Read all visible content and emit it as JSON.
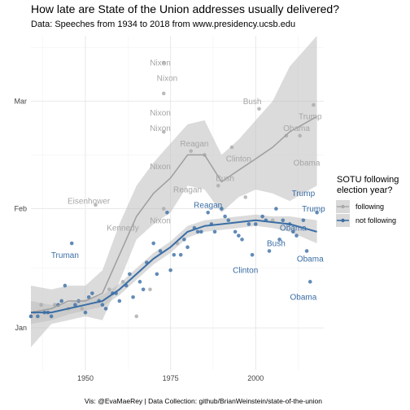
{
  "chart_data": {
    "type": "scatter",
    "title": "How late are State of the Union addresses usually delivered?",
    "subtitle": "Data: Speeches from 1934 to 2018 from www.presidency.ucsb.edu",
    "caption": "Vis: @EvaMaeRey | Data Collection: github/BrianWeinstein/state-of-the-union",
    "xlabel": "",
    "ylabel": "",
    "xlim": [
      1934,
      2020
    ],
    "x_ticks": [
      1950,
      1975,
      2000
    ],
    "y_unit": "day of year",
    "ylim": [
      -10,
      77
    ],
    "y_ticks": [
      {
        "value": 1,
        "label": "Jan"
      },
      {
        "value": 32,
        "label": "Feb"
      },
      {
        "value": 60,
        "label": "Mar"
      }
    ],
    "legend": {
      "title": "SOTU following\nelection year?",
      "position": "right",
      "entries": [
        {
          "label": "following",
          "color": "#aaaaaa"
        },
        {
          "label": "not following",
          "color": "#3a6ea5"
        }
      ]
    },
    "series": [
      {
        "name": "following",
        "color": "#aaaaaa",
        "points": [
          [
            1934,
            4
          ],
          [
            1935,
            5
          ],
          [
            1937,
            7
          ],
          [
            1941,
            7
          ],
          [
            1945,
            6
          ],
          [
            1949,
            6
          ],
          [
            1953,
            33
          ],
          [
            1957,
            11
          ],
          [
            1961,
            13
          ],
          [
            1965,
            4
          ],
          [
            1969,
            11
          ],
          [
            1973,
            70
          ],
          [
            1973,
            62
          ],
          [
            1973,
            32
          ],
          [
            1973,
            52
          ],
          [
            1977,
            23
          ],
          [
            1981,
            47
          ],
          [
            1985,
            46
          ],
          [
            1989,
            38
          ],
          [
            1993,
            48
          ],
          [
            1997,
            35
          ],
          [
            2001,
            58
          ],
          [
            2005,
            29
          ],
          [
            2009,
            51
          ],
          [
            2013,
            51
          ],
          [
            2017,
            59
          ]
        ]
      },
      {
        "name": "not following",
        "color": "#3a6ea5",
        "points": [
          [
            1934,
            4
          ],
          [
            1936,
            4
          ],
          [
            1938,
            5
          ],
          [
            1939,
            5
          ],
          [
            1940,
            4
          ],
          [
            1942,
            7
          ],
          [
            1943,
            8
          ],
          [
            1944,
            12
          ],
          [
            1946,
            23
          ],
          [
            1947,
            7
          ],
          [
            1948,
            8
          ],
          [
            1950,
            5
          ],
          [
            1951,
            9
          ],
          [
            1952,
            10
          ],
          [
            1954,
            8
          ],
          [
            1955,
            7
          ],
          [
            1956,
            6
          ],
          [
            1958,
            10
          ],
          [
            1959,
            10
          ],
          [
            1960,
            8
          ],
          [
            1962,
            12
          ],
          [
            1963,
            15
          ],
          [
            1964,
            9
          ],
          [
            1966,
            13
          ],
          [
            1967,
            11
          ],
          [
            1968,
            18
          ],
          [
            1970,
            23
          ],
          [
            1971,
            15
          ],
          [
            1972,
            21
          ],
          [
            1974,
            31
          ],
          [
            1975,
            16
          ],
          [
            1976,
            20
          ],
          [
            1978,
            20
          ],
          [
            1979,
            24
          ],
          [
            1980,
            22
          ],
          [
            1982,
            27
          ],
          [
            1983,
            26
          ],
          [
            1984,
            26
          ],
          [
            1986,
            31
          ],
          [
            1987,
            28
          ],
          [
            1988,
            26
          ],
          [
            1990,
            32
          ],
          [
            1991,
            30
          ],
          [
            1992,
            29
          ],
          [
            1994,
            26
          ],
          [
            1995,
            25
          ],
          [
            1996,
            24
          ],
          [
            1998,
            28
          ],
          [
            1999,
            20
          ],
          [
            2000,
            28
          ],
          [
            2002,
            30
          ],
          [
            2003,
            29
          ],
          [
            2004,
            21
          ],
          [
            2006,
            32
          ],
          [
            2007,
            24
          ],
          [
            2008,
            29
          ],
          [
            2010,
            28
          ],
          [
            2011,
            26
          ],
          [
            2012,
            25
          ],
          [
            2014,
            29
          ],
          [
            2015,
            21
          ],
          [
            2016,
            13
          ],
          [
            2018,
            31
          ]
        ]
      }
    ],
    "trend_following": {
      "x": [
        1934,
        1940,
        1945,
        1950,
        1955,
        1960,
        1965,
        1970,
        1975,
        1980,
        1985,
        1990,
        1995,
        2000,
        2005,
        2010,
        2018
      ],
      "y": [
        5,
        6,
        8,
        8,
        10,
        20,
        30,
        36,
        40,
        46,
        46,
        39,
        42,
        45,
        48,
        52,
        56
      ],
      "lower": [
        -4,
        2,
        3,
        4,
        3,
        13,
        24,
        28,
        31,
        38,
        37,
        31,
        35,
        37,
        36,
        34,
        38
      ],
      "upper": [
        12,
        11,
        12,
        12,
        16,
        28,
        38,
        44,
        49,
        54,
        55,
        46,
        50,
        55,
        60,
        69,
        77
      ]
    },
    "trend_not_following": {
      "x": [
        1934,
        1940,
        1945,
        1950,
        1955,
        1960,
        1965,
        1970,
        1975,
        1980,
        1985,
        1990,
        1995,
        2000,
        2005,
        2010,
        2018
      ],
      "y": [
        5,
        5,
        6,
        7,
        8,
        11,
        15,
        19,
        22,
        26,
        27.5,
        28,
        28.5,
        29,
        28.5,
        28,
        26
      ],
      "lower": [
        2,
        3,
        4.5,
        5.5,
        6.5,
        9.5,
        13.5,
        17.5,
        20.5,
        24.5,
        26,
        26.5,
        27,
        27.5,
        27,
        26,
        23
      ],
      "upper": [
        8,
        7,
        7.5,
        8.5,
        9.5,
        12.5,
        16.5,
        20.5,
        23.5,
        27.5,
        29,
        29.5,
        30,
        30.5,
        30,
        30,
        29
      ]
    },
    "annotations": [
      {
        "text": "Nixon",
        "x": 1972,
        "y": 70,
        "group": "following"
      },
      {
        "text": "Nixon",
        "x": 1974,
        "y": 66,
        "group": "following"
      },
      {
        "text": "Nixon",
        "x": 1972,
        "y": 57,
        "group": "following"
      },
      {
        "text": "Nixon",
        "x": 1972,
        "y": 53,
        "group": "following"
      },
      {
        "text": "Reagan",
        "x": 1982,
        "y": 49,
        "group": "following"
      },
      {
        "text": "Nixon",
        "x": 1972,
        "y": 43,
        "group": "following"
      },
      {
        "text": "Reagan",
        "x": 1980,
        "y": 37,
        "group": "following"
      },
      {
        "text": "Nixon",
        "x": 1972,
        "y": 29,
        "group": "following"
      },
      {
        "text": "Eisenhower",
        "x": 1951,
        "y": 34,
        "group": "following"
      },
      {
        "text": "Kennedy",
        "x": 1961,
        "y": 27,
        "group": "following"
      },
      {
        "text": "Bush",
        "x": 1999,
        "y": 60,
        "group": "following"
      },
      {
        "text": "Clinton",
        "x": 1995,
        "y": 45,
        "group": "following"
      },
      {
        "text": "Bush",
        "x": 1991,
        "y": 40,
        "group": "following"
      },
      {
        "text": "Trump",
        "x": 2016,
        "y": 56,
        "group": "following"
      },
      {
        "text": "Obama",
        "x": 2012,
        "y": 53,
        "group": "following"
      },
      {
        "text": "Obama",
        "x": 2015,
        "y": 44,
        "group": "following"
      },
      {
        "text": "Truman",
        "x": 1944,
        "y": 20,
        "group": "not following"
      },
      {
        "text": "Reagan",
        "x": 1986,
        "y": 33,
        "group": "not following"
      },
      {
        "text": "Clinton",
        "x": 1997,
        "y": 16,
        "group": "not following"
      },
      {
        "text": "Bush",
        "x": 2006,
        "y": 23,
        "group": "not following"
      },
      {
        "text": "Trump",
        "x": 2014,
        "y": 36,
        "group": "not following"
      },
      {
        "text": "Trump",
        "x": 2017,
        "y": 32,
        "group": "not following"
      },
      {
        "text": "Obama",
        "x": 2011,
        "y": 27,
        "group": "not following"
      },
      {
        "text": "Obama",
        "x": 2016,
        "y": 19,
        "group": "not following"
      },
      {
        "text": "Obama",
        "x": 2014,
        "y": 9,
        "group": "not following"
      }
    ]
  }
}
